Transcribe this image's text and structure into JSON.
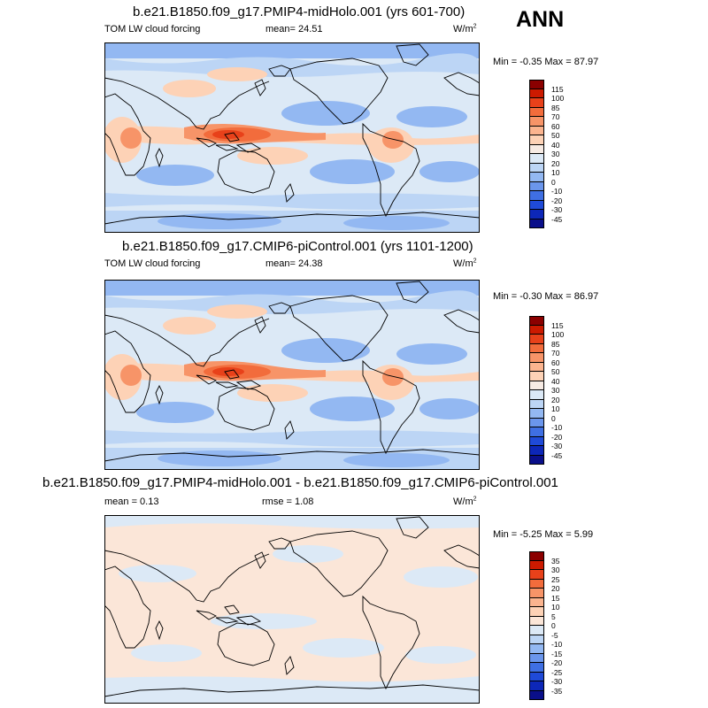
{
  "season": "ANN",
  "units_label": "W/m",
  "units_sup": "2",
  "panels": [
    {
      "title": "b.e21.B1850.f09_g17.PMIP4-midHolo.001 (yrs 601-700)",
      "variable": "TOM LW cloud forcing",
      "mean": "mean=  24.51",
      "minmax": "Min =  -0.35 Max =  87.97"
    },
    {
      "title": "b.e21.B1850.f09_g17.CMIP6-piControl.001 (yrs 1101-1200)",
      "variable": "TOM LW cloud forcing",
      "mean": "mean=  24.38",
      "minmax": "Min =  -0.30 Max =  86.97"
    },
    {
      "title": "b.e21.B1850.f09_g17.PMIP4-midHolo.001 - b.e21.B1850.f09_g17.CMIP6-piControl.001",
      "mean": "mean =   0.13",
      "rmse": "rmse =   1.08",
      "minmax": "Min =  -5.25 Max =   5.99"
    }
  ],
  "colorbars": {
    "main": {
      "ticks": [
        "115",
        "100",
        "85",
        "70",
        "60",
        "50",
        "40",
        "30",
        "20",
        "10",
        "0",
        "-10",
        "-20",
        "-30",
        "-45"
      ],
      "colors": [
        "#8b0000",
        "#cc1a00",
        "#e8411a",
        "#f26c3c",
        "#f79468",
        "#fbb48f",
        "#fdd2b6",
        "#f7ebe4",
        "#dce9f6",
        "#bcd5f5",
        "#93b8f2",
        "#6b96ec",
        "#3f6fe3",
        "#1f4ad8",
        "#0d27b8",
        "#0a0f8a"
      ]
    },
    "diff": {
      "ticks": [
        "35",
        "30",
        "25",
        "20",
        "15",
        "10",
        "5",
        "0",
        "-5",
        "-10",
        "-15",
        "-20",
        "-25",
        "-30",
        "-35"
      ],
      "colors": [
        "#8b0000",
        "#cc1a00",
        "#e8411a",
        "#f26c3c",
        "#f79468",
        "#fbb48f",
        "#fdd2b6",
        "#fbe6d8",
        "#dce9f6",
        "#bcd5f5",
        "#93b8f2",
        "#6b96ec",
        "#3f6fe3",
        "#1f4ad8",
        "#0d27b8",
        "#0a0f8a"
      ]
    }
  },
  "map_colors": {
    "ocean_base": "#dce9f6",
    "low": "#93b8f2",
    "lower": "#bcd5f5",
    "mid": "#fdd2b6",
    "high": "#f79468",
    "higher": "#f26c3c",
    "peak": "#e8411a",
    "diff_pos": "#fbe6d8",
    "diff_neg": "#dce9f6",
    "coast": "#000000"
  }
}
